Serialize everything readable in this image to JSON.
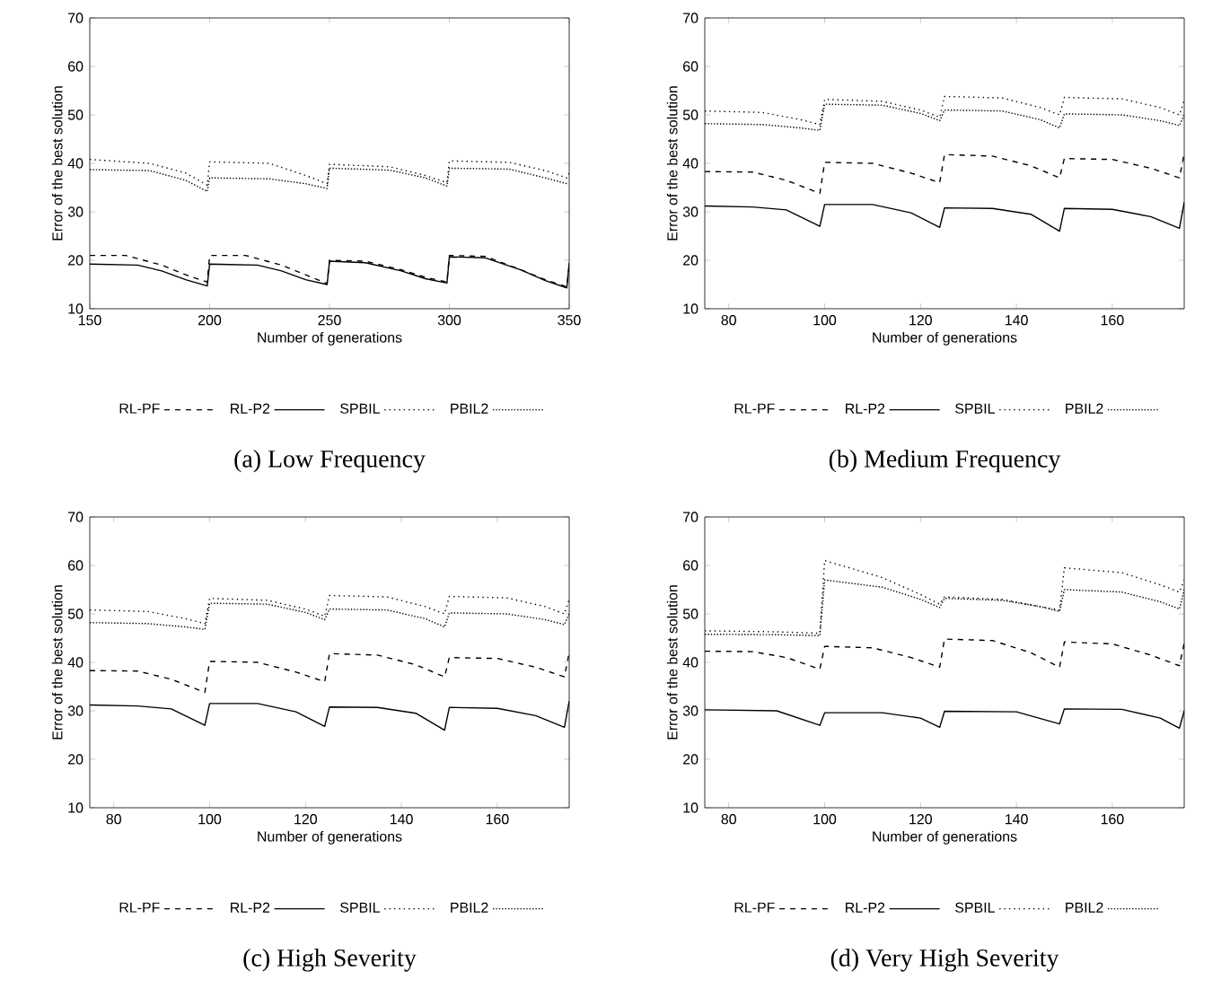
{
  "chart_data": [
    {
      "type": "line",
      "title": "(a) Low Frequency",
      "xlabel": "Number of generations",
      "ylabel": "Error of the best solution",
      "xlim": [
        150,
        350
      ],
      "ylim": [
        10,
        70
      ],
      "xticks": [
        150,
        200,
        250,
        300,
        350
      ],
      "yticks": [
        10,
        20,
        30,
        40,
        50,
        60,
        70
      ],
      "legend": "bottom",
      "series": [
        {
          "name": "RL-PF",
          "color": "#000000",
          "line_style": "dashed",
          "x": [
            150,
            165,
            180,
            190,
            199,
            200,
            215,
            230,
            240,
            249,
            250,
            265,
            280,
            290,
            299,
            300,
            315,
            330,
            340,
            349,
            350
          ],
          "values": [
            21,
            21,
            19,
            17,
            15.5,
            21,
            21,
            19,
            17,
            15.2,
            20,
            19.8,
            18,
            16.5,
            15.5,
            21,
            20.8,
            18,
            16,
            14.5,
            19
          ]
        },
        {
          "name": "RL-P2",
          "color": "#000000",
          "line_style": "solid",
          "x": [
            150,
            170,
            180,
            190,
            199,
            200,
            220,
            230,
            240,
            249,
            250,
            265,
            280,
            290,
            299,
            300,
            315,
            330,
            340,
            349,
            350
          ],
          "values": [
            19.2,
            19,
            17.8,
            16,
            14.7,
            19.2,
            19,
            17.8,
            16,
            15,
            19.8,
            19.5,
            17.8,
            16.2,
            15.3,
            20.7,
            20.5,
            18,
            15.8,
            14.3,
            19.5
          ]
        },
        {
          "name": "SPBIL",
          "color": "#000000",
          "line_style": "dotted",
          "x": [
            150,
            175,
            190,
            199,
            200,
            225,
            240,
            249,
            250,
            275,
            290,
            299,
            300,
            325,
            340,
            349,
            350
          ],
          "values": [
            40.8,
            40,
            38,
            35.5,
            40.3,
            40,
            37.5,
            35.8,
            39.8,
            39.3,
            37.5,
            36,
            40.5,
            40.2,
            38.5,
            37,
            38
          ]
        },
        {
          "name": "PBIL2",
          "color": "#000000",
          "line_style": "densely dotted",
          "x": [
            150,
            175,
            190,
            199,
            200,
            225,
            240,
            249,
            250,
            275,
            290,
            299,
            300,
            325,
            340,
            349
          ],
          "values": [
            38.7,
            38.5,
            36.5,
            34.2,
            37,
            36.8,
            35.8,
            34.8,
            39,
            38.6,
            37,
            35.3,
            39,
            38.8,
            37,
            35.8
          ]
        }
      ]
    },
    {
      "type": "line",
      "title": "(b) Medium Frequency",
      "xlabel": "Number of generations",
      "ylabel": "Error of the best solution",
      "xlim": [
        75,
        175
      ],
      "ylim": [
        10,
        70
      ],
      "xticks": [
        80,
        100,
        120,
        140,
        160
      ],
      "yticks": [
        10,
        20,
        30,
        40,
        50,
        60,
        70
      ],
      "legend": "bottom",
      "series": [
        {
          "name": "RL-PF",
          "color": "#000000",
          "line_style": "dashed",
          "x": [
            75,
            85,
            92,
            99,
            100,
            110,
            118,
            124,
            125,
            135,
            143,
            149,
            150,
            160,
            168,
            174,
            175
          ],
          "values": [
            38.3,
            38.2,
            36.5,
            33.8,
            40.2,
            40,
            38,
            36,
            41.8,
            41.5,
            39.5,
            37,
            41,
            40.8,
            39,
            37,
            42
          ]
        },
        {
          "name": "RL-P2",
          "color": "#000000",
          "line_style": "solid",
          "x": [
            75,
            85,
            92,
            99,
            100,
            110,
            118,
            124,
            125,
            135,
            143,
            149,
            150,
            160,
            168,
            174,
            175
          ],
          "values": [
            31.2,
            31,
            30.4,
            27,
            31.5,
            31.5,
            29.8,
            26.8,
            30.8,
            30.7,
            29.5,
            26,
            30.7,
            30.5,
            29,
            26.6,
            32
          ]
        },
        {
          "name": "SPBIL",
          "color": "#000000",
          "line_style": "dotted",
          "x": [
            75,
            87,
            95,
            99,
            100,
            112,
            120,
            124,
            125,
            137,
            145,
            149,
            150,
            162,
            170,
            174,
            175
          ],
          "values": [
            50.8,
            50.5,
            49,
            48,
            53.2,
            52.8,
            51,
            49.5,
            53.8,
            53.5,
            51.5,
            50,
            53.6,
            53.3,
            51.5,
            50,
            53
          ]
        },
        {
          "name": "PBIL2",
          "color": "#000000",
          "line_style": "densely dotted",
          "x": [
            75,
            87,
            95,
            99,
            100,
            112,
            120,
            124,
            125,
            137,
            145,
            149,
            150,
            162,
            170,
            174,
            175
          ],
          "values": [
            48.2,
            48,
            47.3,
            46.8,
            52.2,
            52,
            50.3,
            48.8,
            51,
            50.8,
            49,
            47.3,
            50.2,
            50,
            48.8,
            47.8,
            50
          ]
        }
      ]
    },
    {
      "type": "line",
      "title": "(c) High Severity",
      "xlabel": "Number of generations",
      "ylabel": "Error of the best solution",
      "xlim": [
        75,
        175
      ],
      "ylim": [
        10,
        70
      ],
      "xticks": [
        80,
        100,
        120,
        140,
        160
      ],
      "yticks": [
        10,
        20,
        30,
        40,
        50,
        60,
        70
      ],
      "legend": "bottom",
      "series": [
        {
          "name": "RL-PF",
          "color": "#000000",
          "line_style": "dashed",
          "x": [
            75,
            85,
            92,
            99,
            100,
            110,
            118,
            124,
            125,
            135,
            143,
            149,
            150,
            160,
            168,
            174,
            175
          ],
          "values": [
            38.3,
            38.2,
            36.5,
            33.8,
            40.2,
            40,
            38,
            36,
            41.8,
            41.5,
            39.5,
            37,
            41,
            40.8,
            39,
            37,
            42
          ]
        },
        {
          "name": "RL-P2",
          "color": "#000000",
          "line_style": "solid",
          "x": [
            75,
            85,
            92,
            99,
            100,
            110,
            118,
            124,
            125,
            135,
            143,
            149,
            150,
            160,
            168,
            174,
            175
          ],
          "values": [
            31.2,
            31,
            30.4,
            27,
            31.5,
            31.5,
            29.8,
            26.8,
            30.8,
            30.7,
            29.5,
            26,
            30.7,
            30.5,
            29,
            26.6,
            32
          ]
        },
        {
          "name": "SPBIL",
          "color": "#000000",
          "line_style": "dotted",
          "x": [
            75,
            87,
            95,
            99,
            100,
            112,
            120,
            124,
            125,
            137,
            145,
            149,
            150,
            162,
            170,
            174,
            175
          ],
          "values": [
            50.8,
            50.5,
            49,
            48,
            53.2,
            52.8,
            51,
            49.5,
            53.8,
            53.5,
            51.5,
            50,
            53.6,
            53.3,
            51.5,
            50,
            53
          ]
        },
        {
          "name": "PBIL2",
          "color": "#000000",
          "line_style": "densely dotted",
          "x": [
            75,
            87,
            95,
            99,
            100,
            112,
            120,
            124,
            125,
            137,
            145,
            149,
            150,
            162,
            170,
            174,
            175
          ],
          "values": [
            48.2,
            48,
            47.3,
            46.8,
            52.2,
            52,
            50.3,
            48.8,
            51,
            50.8,
            49,
            47.3,
            50.2,
            50,
            48.8,
            47.8,
            50
          ]
        }
      ]
    },
    {
      "type": "line",
      "title": "(d) Very High Severity",
      "xlabel": "Number of generations",
      "ylabel": "Error of the best solution",
      "xlim": [
        75,
        175
      ],
      "ylim": [
        10,
        70
      ],
      "xticks": [
        80,
        100,
        120,
        140,
        160
      ],
      "yticks": [
        10,
        20,
        30,
        40,
        50,
        60,
        70
      ],
      "legend": "bottom",
      "series": [
        {
          "name": "RL-PF",
          "color": "#000000",
          "line_style": "dashed",
          "x": [
            75,
            85,
            92,
            99,
            100,
            110,
            118,
            124,
            125,
            135,
            143,
            149,
            150,
            160,
            168,
            174,
            175
          ],
          "values": [
            42.3,
            42.2,
            41,
            38.6,
            43.3,
            43,
            41,
            39,
            44.8,
            44.5,
            42,
            39,
            44.2,
            43.8,
            41.5,
            39.3,
            44
          ]
        },
        {
          "name": "RL-P2",
          "color": "#000000",
          "line_style": "solid",
          "x": [
            75,
            90,
            99,
            100,
            112,
            120,
            124,
            125,
            140,
            149,
            150,
            162,
            170,
            174,
            175
          ],
          "values": [
            30.2,
            30,
            27,
            29.6,
            29.6,
            28.5,
            26.6,
            29.9,
            29.8,
            27.3,
            30.4,
            30.3,
            28.5,
            26.4,
            30
          ]
        },
        {
          "name": "SPBIL",
          "color": "#000000",
          "line_style": "dotted",
          "x": [
            75,
            90,
            99,
            100,
            112,
            120,
            124,
            125,
            137,
            145,
            149,
            150,
            162,
            170,
            174,
            175
          ],
          "values": [
            46.5,
            46.3,
            46,
            61,
            57.5,
            54,
            52,
            53.5,
            53,
            51.5,
            50.8,
            59.5,
            58.5,
            56,
            54.5,
            57
          ]
        },
        {
          "name": "PBIL2",
          "color": "#000000",
          "line_style": "densely dotted",
          "x": [
            75,
            90,
            99,
            100,
            112,
            120,
            124,
            125,
            137,
            145,
            149,
            150,
            162,
            170,
            174,
            175
          ],
          "values": [
            45.8,
            45.7,
            45.5,
            57,
            55.5,
            53,
            51.3,
            53.2,
            52.8,
            51.5,
            50.5,
            55,
            54.5,
            52.5,
            51,
            55
          ]
        }
      ]
    }
  ]
}
